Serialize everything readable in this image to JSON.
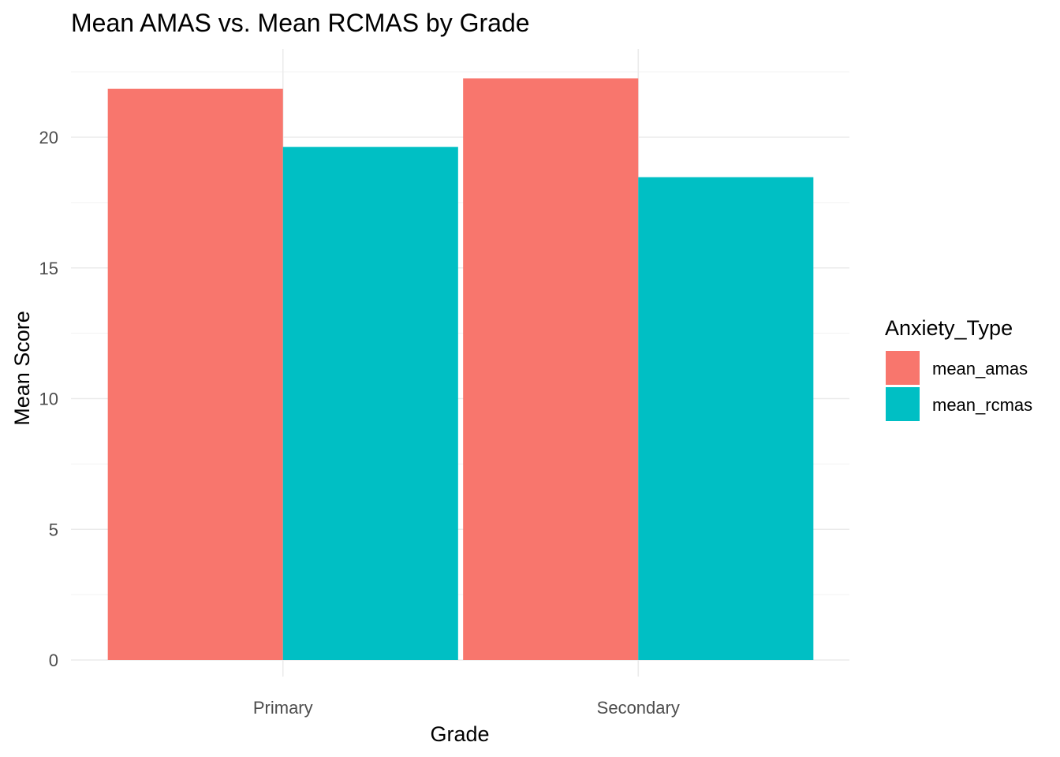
{
  "chart_data": {
    "type": "bar",
    "title": "Mean AMAS vs. Mean RCMAS by Grade",
    "xlabel": "Grade",
    "ylabel": "Mean Score",
    "categories": [
      "Primary",
      "Secondary"
    ],
    "series": [
      {
        "name": "mean_amas",
        "values": [
          21.85,
          22.25
        ],
        "color": "#F8766D"
      },
      {
        "name": "mean_rcmas",
        "values": [
          19.63,
          18.47
        ],
        "color": "#00BFC4"
      }
    ],
    "ylim": [
      0,
      22.8
    ],
    "yticks": [
      0,
      5,
      10,
      15,
      20
    ],
    "grid": true,
    "legend": {
      "title": "Anxiety_Type",
      "position": "right"
    }
  }
}
